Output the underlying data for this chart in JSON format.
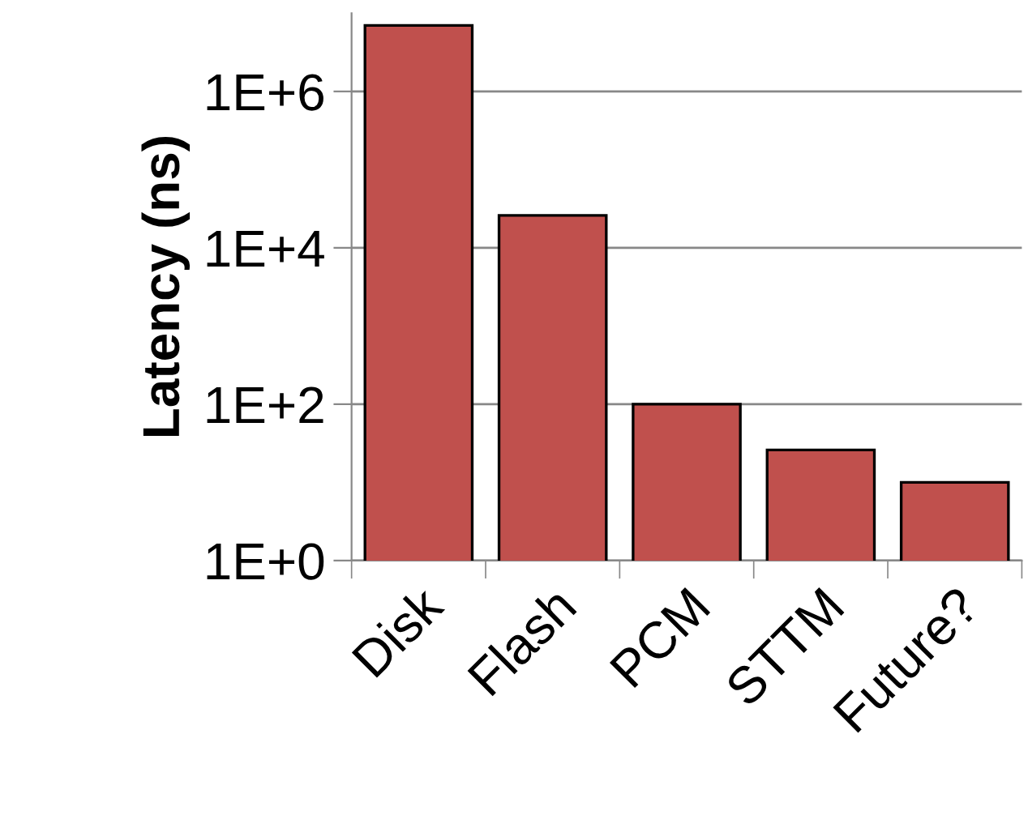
{
  "chart_data": {
    "type": "bar",
    "ylabel": "Latency (ns)",
    "categories": [
      "Disk",
      "Flash",
      "PCM",
      "STTM",
      "Future?"
    ],
    "values": [
      7000000,
      26000,
      100,
      26,
      10
    ],
    "color": "#c0504d",
    "log": true,
    "ylim": [
      1,
      10000000
    ],
    "yticks": [
      {
        "value": 1,
        "label": "1E+0"
      },
      {
        "value": 100,
        "label": "1E+2"
      },
      {
        "value": 10000,
        "label": "1E+4"
      },
      {
        "value": 1000000,
        "label": "1E+6"
      }
    ],
    "grid": "y",
    "legend": false
  }
}
